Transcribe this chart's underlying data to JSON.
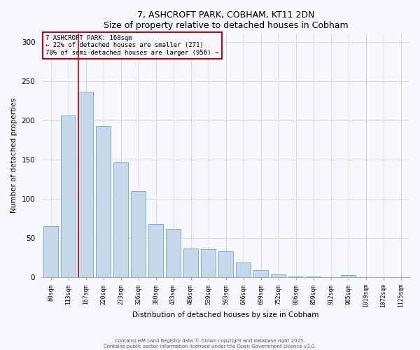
{
  "title": "7, ASHCROFT PARK, COBHAM, KT11 2DN",
  "subtitle": "Size of property relative to detached houses in Cobham",
  "xlabel": "Distribution of detached houses by size in Cobham",
  "ylabel": "Number of detached properties",
  "bar_labels": [
    "60sqm",
    "113sqm",
    "167sqm",
    "220sqm",
    "273sqm",
    "326sqm",
    "380sqm",
    "433sqm",
    "486sqm",
    "539sqm",
    "593sqm",
    "646sqm",
    "699sqm",
    "752sqm",
    "806sqm",
    "859sqm",
    "912sqm",
    "965sqm",
    "1019sqm",
    "1072sqm",
    "1125sqm"
  ],
  "bar_values": [
    65,
    206,
    236,
    193,
    146,
    110,
    68,
    62,
    37,
    36,
    33,
    19,
    9,
    4,
    1,
    1,
    0,
    3,
    0,
    0,
    0
  ],
  "bar_color": "#c6d9ea",
  "bar_edge_color": "#7bafd4",
  "ylim": [
    0,
    310
  ],
  "yticks": [
    0,
    50,
    100,
    150,
    200,
    250,
    300
  ],
  "property_line_color": "#cc0000",
  "annotation_box_text": "7 ASHCROFT PARK: 168sqm\n← 22% of detached houses are smaller (271)\n78% of semi-detached houses are larger (956) →",
  "annotation_box_color": "#cc0000",
  "footnote1": "Contains HM Land Registry data © Crown copyright and database right 2025.",
  "footnote2": "Contains public sector information licensed under the Open Government Licence v3.0.",
  "bg_color": "#f7f7ff",
  "grid_color": "#d4dde8"
}
